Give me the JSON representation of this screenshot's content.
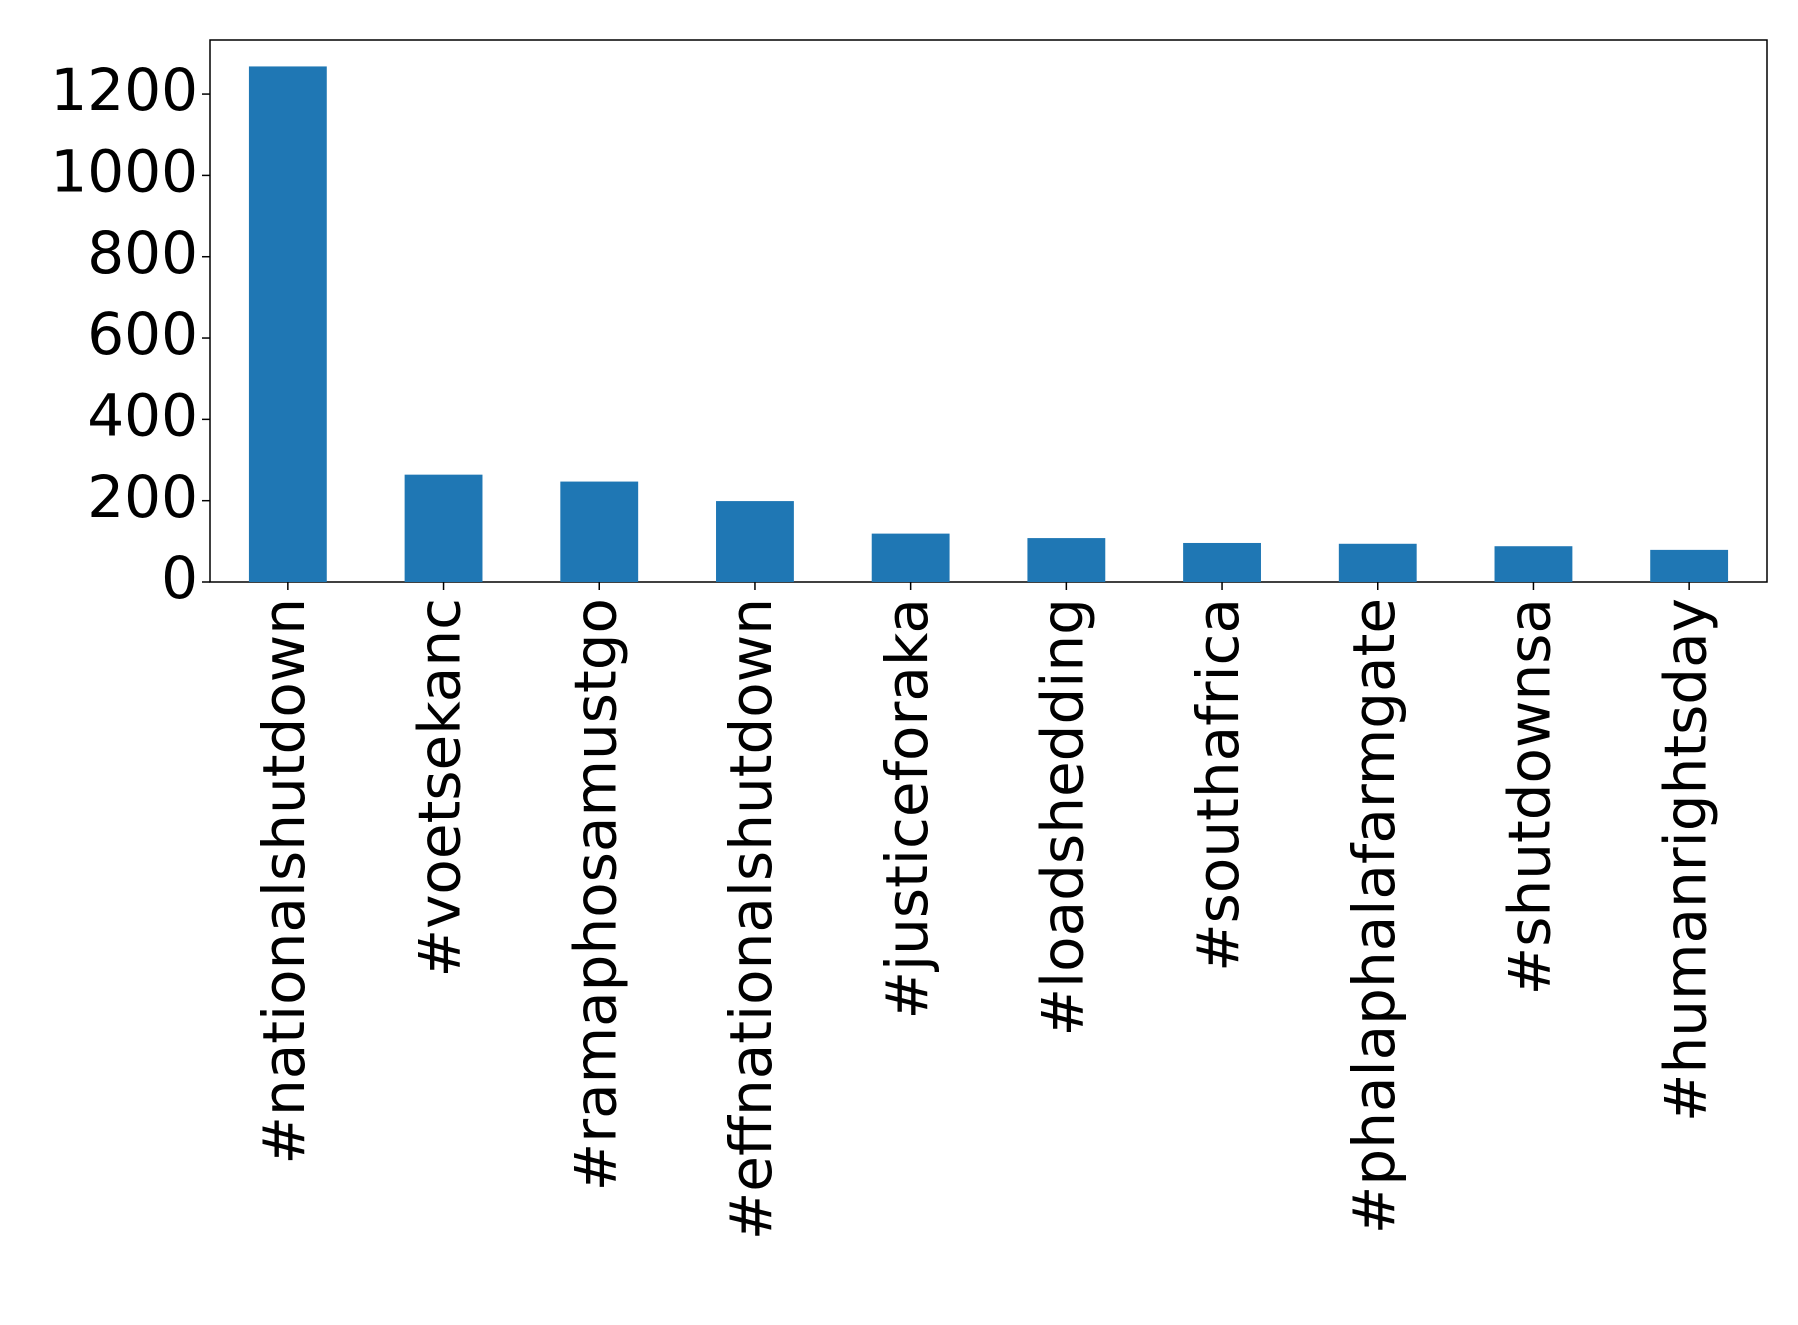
{
  "chart_data": {
    "type": "bar",
    "categories": [
      "#nationalshutdown",
      "#voetsekanc",
      "#ramaphosamustgo",
      "#effnationalshutdown",
      "#justiceforaka",
      "#loadshedding",
      "#southafrica",
      "#phalaphalafarmgate",
      "#shutdownsa",
      "#humanrightsday"
    ],
    "values": [
      1268,
      264,
      247,
      199,
      119,
      108,
      96,
      94,
      88,
      79
    ],
    "color": "#1f77b4",
    "ylim": [
      0,
      1333
    ],
    "yticks": [
      0,
      200,
      400,
      600,
      800,
      1000,
      1200
    ],
    "grid": false
  }
}
